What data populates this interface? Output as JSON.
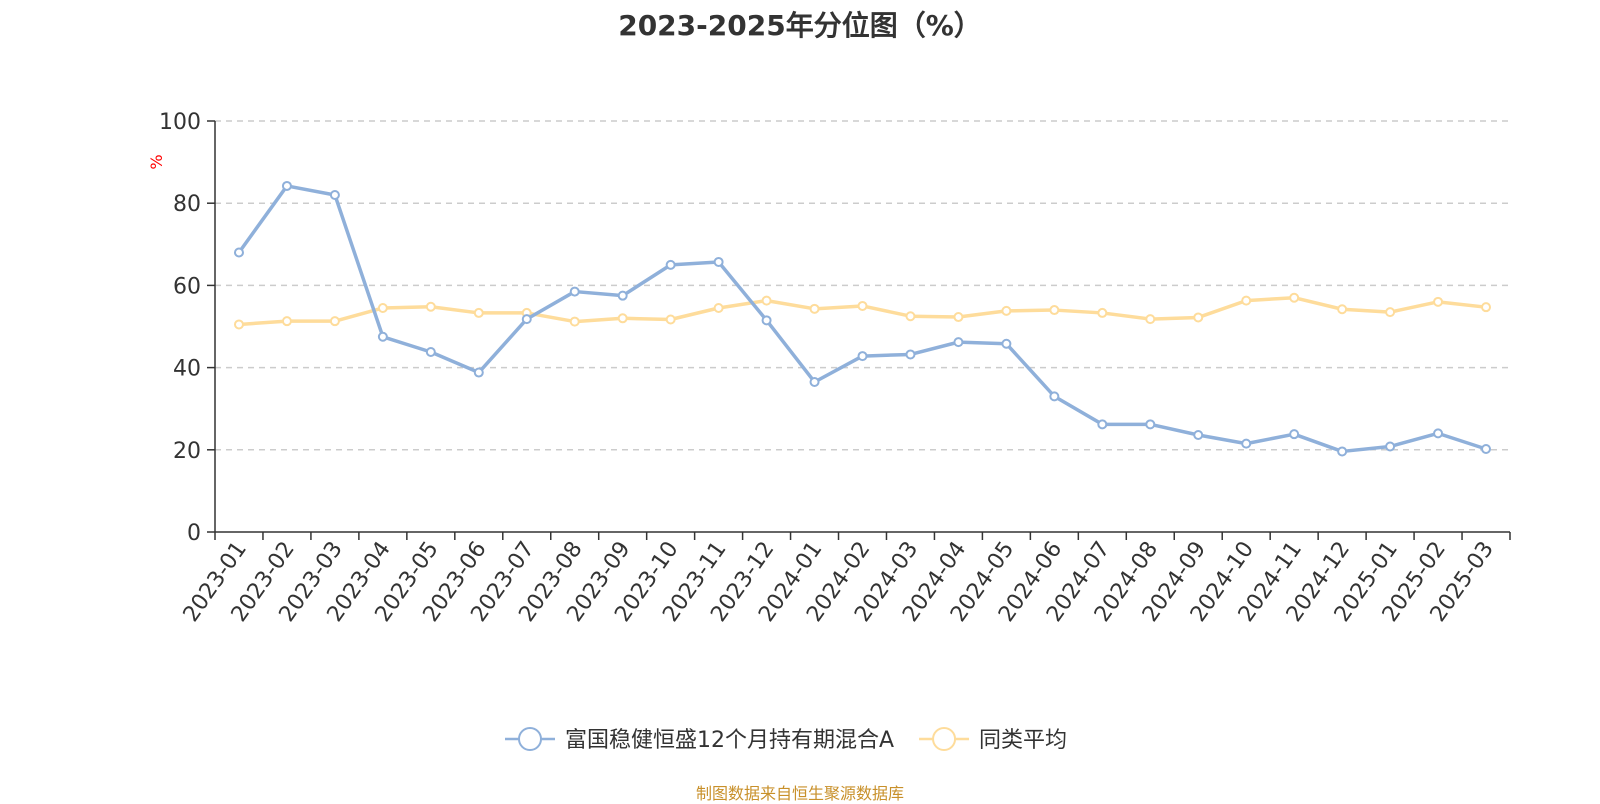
{
  "title": "2023-2025年分位图（%）",
  "footer": "制图数据来自恒生聚源数据库",
  "chart_data": {
    "type": "line",
    "title": "2023-2025年分位图（%）",
    "xlabel": "",
    "ylabel": "%",
    "ylim": [
      0,
      100
    ],
    "yticks": [
      0,
      20,
      40,
      60,
      80,
      100
    ],
    "grid": true,
    "legend": "bottom",
    "categories": [
      "2023-01",
      "2023-02",
      "2023-03",
      "2023-04",
      "2023-05",
      "2023-06",
      "2023-07",
      "2023-08",
      "2023-09",
      "2023-10",
      "2023-11",
      "2023-12",
      "2024-01",
      "2024-02",
      "2024-03",
      "2024-04",
      "2024-05",
      "2024-06",
      "2024-07",
      "2024-08",
      "2024-09",
      "2024-10",
      "2024-11",
      "2024-12",
      "2025-01",
      "2025-02",
      "2025-03"
    ],
    "series": [
      {
        "name": "富国稳健恒盛12个月持有期混合A",
        "color": "#8fb0da",
        "values": [
          68,
          84.2,
          82,
          47.5,
          43.8,
          38.8,
          51.8,
          58.5,
          57.5,
          65,
          65.7,
          51.5,
          36.5,
          42.8,
          43.2,
          46.2,
          45.8,
          33,
          26.2,
          26.2,
          23.6,
          21.5,
          23.8,
          19.6,
          20.8,
          24,
          20.2
        ]
      },
      {
        "name": "同类平均",
        "color": "#fedc9b",
        "values": [
          50.5,
          51.3,
          51.3,
          54.5,
          54.8,
          53.3,
          53.3,
          51.2,
          52,
          51.7,
          54.5,
          56.3,
          54.3,
          55,
          52.5,
          52.3,
          53.8,
          54,
          53.3,
          51.8,
          52.2,
          56.3,
          57,
          54.2,
          53.5,
          56,
          54.7
        ]
      }
    ]
  }
}
